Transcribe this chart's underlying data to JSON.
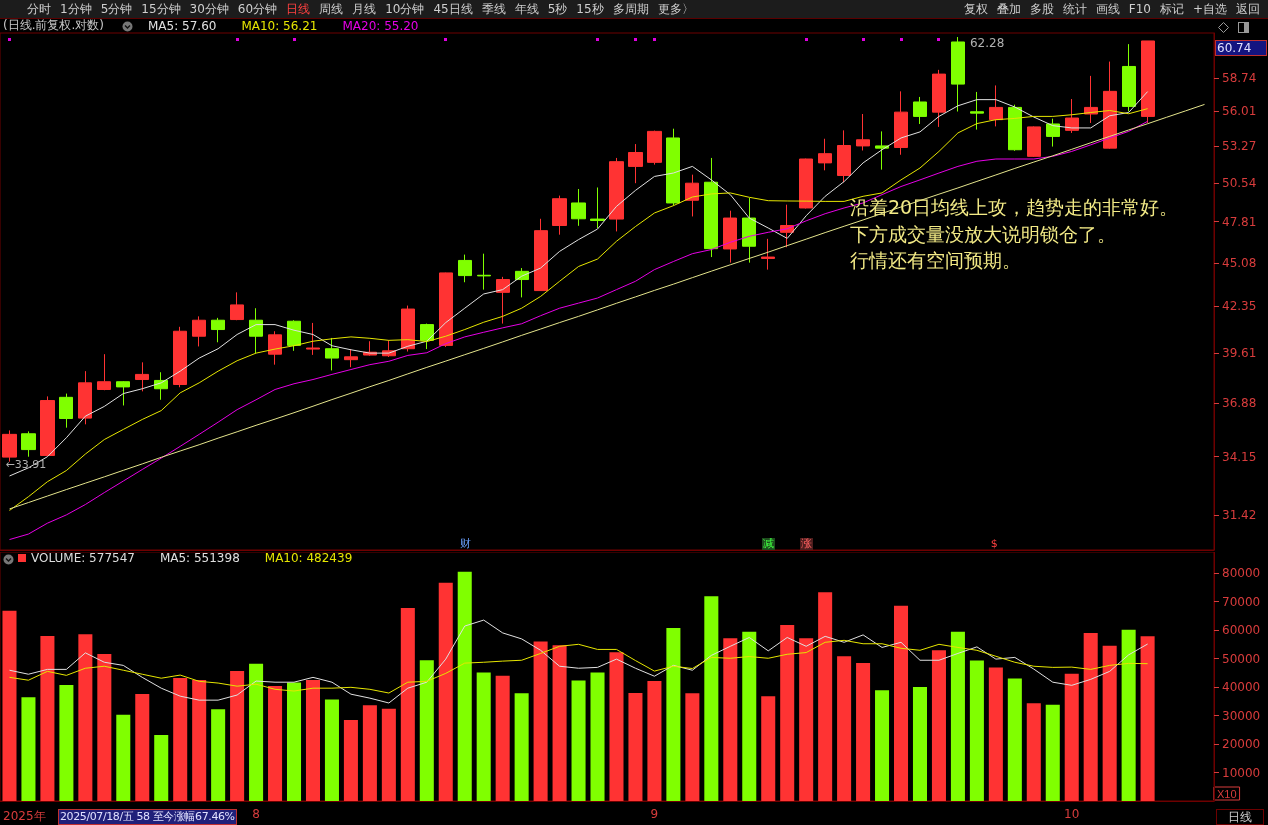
{
  "chart_data": [
    {
      "type": "candlestick",
      "title": "(日线.前复权.对数)",
      "categories": [
        null,
        null,
        null,
        null,
        null,
        null,
        null,
        null,
        null,
        null,
        null,
        null,
        null,
        null,
        null,
        null,
        null,
        null,
        null,
        null,
        null,
        null,
        null,
        null,
        null,
        null,
        null,
        null,
        null,
        null,
        null,
        null,
        null,
        null,
        null,
        null,
        null,
        null,
        null,
        null,
        null,
        null,
        null,
        null,
        null,
        null,
        null,
        null,
        null,
        null,
        null,
        null,
        null,
        null,
        null,
        null,
        null,
        null,
        null,
        null,
        null,
        null,
        null,
        null
      ],
      "ohlc": [
        [
          34.13,
          35.46,
          33.91,
          35.26
        ],
        [
          35.29,
          35.41,
          34.15,
          34.5
        ],
        [
          34.21,
          37.23,
          34.21,
          37.01
        ],
        [
          37.18,
          37.38,
          35.6,
          36.07
        ],
        [
          36.09,
          38.6,
          35.77,
          37.96
        ],
        [
          37.6,
          39.55,
          37.56,
          38.02
        ],
        [
          38.02,
          38.05,
          36.75,
          37.74
        ],
        [
          38.14,
          39.09,
          37.5,
          38.42
        ],
        [
          38.09,
          38.54,
          37.05,
          37.64
        ],
        [
          37.87,
          41.13,
          37.72,
          40.87
        ],
        [
          40.58,
          41.75,
          39.99,
          41.52
        ],
        [
          41.52,
          41.66,
          40.23,
          40.97
        ],
        [
          41.56,
          43.21,
          41.52,
          42.44
        ],
        [
          41.52,
          42.24,
          39.61,
          40.58
        ],
        [
          39.55,
          40.87,
          38.96,
          40.66
        ],
        [
          41.46,
          41.52,
          39.74,
          40.05
        ],
        [
          39.84,
          41.36,
          39.51,
          39.9
        ],
        [
          39.86,
          40.48,
          38.64,
          39.33
        ],
        [
          39.24,
          39.84,
          38.82,
          39.4
        ],
        [
          39.5,
          40.29,
          39.46,
          39.66
        ],
        [
          39.46,
          40.34,
          39.39,
          39.74
        ],
        [
          39.86,
          42.4,
          39.7,
          42.19
        ],
        [
          41.26,
          41.32,
          39.84,
          40.34
        ],
        [
          40.05,
          44.45,
          39.96,
          44.43
        ],
        [
          45.23,
          45.61,
          43.84,
          44.26
        ],
        [
          44.28,
          45.67,
          43.38,
          44.24
        ],
        [
          43.21,
          44.18,
          41.32,
          44.01
        ],
        [
          44.53,
          44.74,
          42.9,
          44.01
        ],
        [
          43.32,
          48.01,
          43.32,
          47.2
        ],
        [
          47.55,
          49.63,
          46.93,
          49.41
        ],
        [
          49.11,
          50.1,
          47.53,
          48.01
        ],
        [
          47.99,
          50.21,
          47.38,
          47.89
        ],
        [
          47.99,
          52.38,
          47.15,
          52.1
        ],
        [
          51.75,
          53.43,
          50.52,
          52.79
        ],
        [
          52.05,
          54.47,
          51.88,
          54.41
        ],
        [
          53.9,
          54.62,
          48.92,
          49.11
        ],
        [
          49.3,
          51.14,
          48.17,
          50.52
        ],
        [
          50.59,
          52.38,
          45.45,
          46.0
        ],
        [
          45.98,
          48.57,
          45.09,
          48.06
        ],
        [
          48.06,
          49.46,
          45.09,
          46.16
        ],
        [
          45.36,
          46.65,
          44.64,
          45.45
        ],
        [
          47.09,
          48.99,
          46.09,
          47.55
        ],
        [
          48.76,
          52.33,
          48.72,
          52.3
        ],
        [
          52.01,
          53.84,
          51.46,
          52.7
        ],
        [
          51.08,
          54.49,
          50.59,
          53.32
        ],
        [
          53.29,
          55.78,
          52.94,
          53.76
        ],
        [
          53.29,
          54.41,
          51.51,
          53.12
        ],
        [
          53.17,
          57.62,
          52.62,
          55.93
        ],
        [
          56.75,
          57.16,
          54.99,
          55.59
        ],
        [
          55.93,
          59.42,
          54.76,
          59.06
        ],
        [
          61.84,
          62.28,
          55.98,
          58.22
        ],
        [
          55.96,
          57.57,
          54.55,
          55.85
        ],
        [
          55.33,
          58.11,
          54.8,
          56.31
        ],
        [
          56.31,
          56.53,
          52.92,
          53.0
        ],
        [
          52.5,
          54.8,
          52.45,
          54.76
        ],
        [
          54.99,
          55.41,
          53.24,
          54.02
        ],
        [
          54.49,
          56.99,
          54.29,
          55.46
        ],
        [
          55.78,
          58.91,
          55.07,
          56.31
        ],
        [
          53.12,
          60.13,
          53.08,
          57.62
        ],
        [
          59.71,
          61.65,
          55.98,
          56.39
        ],
        [
          55.59,
          61.93,
          55.07,
          61.93
        ],
        null,
        null,
        null
      ],
      "colors": [
        "#ff3333",
        "#80ff00",
        "#ff3333",
        "#80ff00",
        "#ff3333",
        "#ff3333",
        "#80ff00",
        "#ff3333",
        "#80ff00",
        "#ff3333",
        "#ff3333",
        "#80ff00",
        "#ff3333",
        "#80ff00",
        "#ff3333",
        "#80ff00",
        "#ff3333",
        "#80ff00",
        "#ff3333",
        "#ff3333",
        "#ff3333",
        "#ff3333",
        "#80ff00",
        "#ff3333",
        "#80ff00",
        "#80ff00",
        "#ff3333",
        "#80ff00",
        "#ff3333",
        "#ff3333",
        "#80ff00",
        "#80ff00",
        "#ff3333",
        "#ff3333",
        "#ff3333",
        "#80ff00",
        "#ff3333",
        "#80ff00",
        "#ff3333",
        "#80ff00",
        "#ff3333",
        "#ff3333",
        "#ff3333",
        "#ff3333",
        "#ff3333",
        "#ff3333",
        "#80ff00",
        "#ff3333",
        "#80ff00",
        "#ff3333",
        "#80ff00",
        "#80ff00",
        "#ff3333",
        "#80ff00",
        "#ff3333",
        "#80ff00",
        "#ff3333",
        "#ff3333",
        "#ff3333",
        "#80ff00",
        "#ff3333",
        null,
        null,
        null
      ],
      "series": [
        {
          "type": "line",
          "name": "MA5: 57.60",
          "color": "#e0e0e0",
          "values": [
            33.22,
            33.61,
            34.15,
            35.09,
            36.19,
            36.7,
            37.38,
            37.64,
            37.96,
            38.6,
            39.33,
            39.86,
            40.68,
            41.26,
            41.26,
            40.93,
            40.68,
            40.03,
            39.8,
            39.61,
            39.61,
            40.0,
            40.29,
            41.38,
            42.24,
            43.11,
            43.38,
            44.22,
            44.74,
            45.82,
            46.6,
            47.31,
            48.87,
            50.0,
            51.01,
            51.26,
            51.75,
            50.76,
            49.7,
            48.06,
            47.38,
            46.68,
            48.22,
            49.58,
            50.64,
            52.01,
            53.0,
            53.9,
            54.37,
            55.59,
            56.44,
            56.94,
            56.94,
            56.34,
            55.54,
            54.86,
            54.68,
            54.68,
            55.64,
            55.9,
            57.6,
            null,
            null,
            null
          ]
        },
        {
          "type": "line",
          "name": "MA10: 56.21",
          "color": "#e6e600",
          "values": [
            31.62,
            32.25,
            32.95,
            33.48,
            34.28,
            35.0,
            35.51,
            36.02,
            36.48,
            37.42,
            37.96,
            38.6,
            39.18,
            39.61,
            39.84,
            40.03,
            40.29,
            40.43,
            40.54,
            40.46,
            40.34,
            40.38,
            40.27,
            40.58,
            40.97,
            41.4,
            41.75,
            42.24,
            42.96,
            43.9,
            44.84,
            45.32,
            46.49,
            47.48,
            48.41,
            48.92,
            49.53,
            49.75,
            49.82,
            49.51,
            49.27,
            49.25,
            49.24,
            49.22,
            49.22,
            49.58,
            49.82,
            50.76,
            51.63,
            52.87,
            54.29,
            55.02,
            55.33,
            55.43,
            55.59,
            55.59,
            55.72,
            55.9,
            56.06,
            55.8,
            56.21,
            null,
            null,
            null
          ]
        },
        {
          "type": "line",
          "name": "MA20: 55.20",
          "color": "#e600e6",
          "values": [
            30.33,
            30.57,
            31.05,
            31.42,
            31.89,
            32.44,
            32.98,
            33.53,
            34.08,
            34.66,
            35.26,
            35.88,
            36.53,
            37.05,
            37.6,
            37.91,
            38.14,
            38.42,
            38.69,
            38.96,
            39.15,
            39.48,
            39.63,
            40.15,
            40.54,
            40.81,
            41.07,
            41.31,
            41.79,
            42.24,
            42.55,
            42.86,
            43.38,
            43.9,
            44.64,
            45.16,
            45.67,
            45.94,
            46.42,
            46.82,
            47.09,
            47.33,
            47.87,
            48.36,
            48.76,
            49.11,
            49.7,
            50.28,
            50.76,
            51.26,
            51.75,
            52.13,
            52.3,
            52.3,
            52.3,
            52.5,
            52.87,
            53.37,
            53.9,
            54.41,
            55.2,
            null,
            null,
            null
          ]
        },
        {
          "type": "line",
          "color": "#e4e48c",
          "values": [
            31.69,
            31.98,
            32.28,
            32.58,
            32.88,
            33.18,
            33.49,
            33.8,
            34.12,
            34.43,
            34.74,
            35.07,
            35.39,
            35.72,
            36.04,
            36.37,
            36.71,
            37.06,
            37.4,
            37.75,
            38.09,
            38.45,
            38.81,
            39.16,
            39.52,
            39.88,
            40.25,
            40.63,
            41.0,
            41.38,
            41.75,
            42.14,
            42.54,
            42.93,
            43.33,
            43.72,
            44.13,
            44.54,
            44.95,
            45.36,
            45.77,
            46.2,
            46.63,
            47.07,
            47.5,
            47.93,
            48.38,
            48.83,
            49.28,
            49.73,
            50.18,
            50.65,
            51.12,
            51.6,
            52.07,
            52.54,
            53.03,
            53.53,
            54.02,
            54.52,
            55.01,
            55.52,
            56.03,
            56.55
          ]
        }
      ],
      "ylim": [
        29.88,
        62.64
      ],
      "yticks": [
        31.42,
        34.15,
        36.88,
        39.61,
        42.35,
        45.08,
        47.81,
        50.54,
        53.27,
        56.01,
        58.74
      ],
      "log": true,
      "grid": false,
      "legend": "top left",
      "tick_labels": "y",
      "marker": "none",
      "annotations": [
        "分时",
        "1分钟",
        "5分钟",
        "15分钟",
        "30分钟",
        "60分钟",
        "日线",
        "周线",
        "月线",
        "10分钟",
        "45日线",
        "季线",
        "年线",
        "5秒",
        "15秒",
        "多周期",
        "更多〉",
        "复权",
        "叠加",
        "多股",
        "统计",
        "画线",
        "F10",
        "标记",
        "+自选",
        "返回",
        "沿着20日均线上攻，趋势走的非常好。",
        "下方成交量没放大说明锁仓了。",
        "行情还有空间预期。",
        "财",
        "减",
        "涨",
        "$",
        "←33.91",
        "62.28",
        "60.74"
      ]
    },
    {
      "type": "bar",
      "categories": [
        null,
        null,
        null,
        null,
        null,
        null,
        null,
        null,
        null,
        null,
        null,
        null,
        null,
        "8",
        null,
        null,
        null,
        null,
        null,
        null,
        null,
        null,
        null,
        null,
        null,
        null,
        null,
        null,
        null,
        null,
        null,
        null,
        null,
        null,
        "9",
        null,
        null,
        null,
        null,
        null,
        null,
        null,
        null,
        null,
        null,
        null,
        null,
        null,
        null,
        null,
        null,
        null,
        null,
        null,
        null,
        null,
        "10",
        null,
        null,
        null,
        null,
        null,
        null,
        null
      ],
      "series": [
        {
          "name": "VOLUME: 577547",
          "values": [
            66800,
            36400,
            57900,
            40700,
            58500,
            51600,
            30300,
            37600,
            23200,
            43200,
            42500,
            32200,
            45600,
            48200,
            40400,
            41600,
            42500,
            35600,
            28400,
            33600,
            32400,
            67700,
            49400,
            76600,
            80500,
            45100,
            44000,
            37800,
            56000,
            54700,
            42300,
            45100,
            52200,
            37900,
            42100,
            60700,
            37800,
            71900,
            57100,
            59400,
            36800,
            61800,
            57100,
            73300,
            50800,
            48400,
            38900,
            68500,
            40000,
            52900,
            59400,
            49300,
            46900,
            43000,
            34300,
            33800,
            44700,
            59000,
            54500,
            60100,
            57800,
            null,
            null,
            null
          ],
          "colors": [
            "#ff3333",
            "#80ff00",
            "#ff3333",
            "#80ff00",
            "#ff3333",
            "#ff3333",
            "#80ff00",
            "#ff3333",
            "#80ff00",
            "#ff3333",
            "#ff3333",
            "#80ff00",
            "#ff3333",
            "#80ff00",
            "#ff3333",
            "#80ff00",
            "#ff3333",
            "#80ff00",
            "#ff3333",
            "#ff3333",
            "#ff3333",
            "#ff3333",
            "#80ff00",
            "#ff3333",
            "#80ff00",
            "#80ff00",
            "#ff3333",
            "#80ff00",
            "#ff3333",
            "#ff3333",
            "#80ff00",
            "#80ff00",
            "#ff3333",
            "#ff3333",
            "#ff3333",
            "#80ff00",
            "#ff3333",
            "#80ff00",
            "#ff3333",
            "#80ff00",
            "#ff3333",
            "#ff3333",
            "#ff3333",
            "#ff3333",
            "#ff3333",
            "#ff3333",
            "#80ff00",
            "#ff3333",
            "#80ff00",
            "#ff3333",
            "#80ff00",
            "#80ff00",
            "#ff3333",
            "#80ff00",
            "#ff3333",
            "#80ff00",
            "#ff3333",
            "#ff3333",
            "#ff3333",
            "#80ff00",
            "#ff3333",
            null,
            null,
            null
          ]
        },
        {
          "type": "line",
          "name": "MA5: 551398",
          "color": "#e0e0e0",
          "values": [
            45900,
            44500,
            46200,
            46200,
            52000,
            48700,
            47600,
            43400,
            39600,
            36800,
            35400,
            35400,
            37200,
            42100,
            41700,
            41700,
            43400,
            41700,
            37500,
            36100,
            34400,
            39600,
            41700,
            49800,
            61400,
            63500,
            59000,
            56900,
            52900,
            47300,
            46600,
            46900,
            49800,
            46600,
            43800,
            47600,
            45900,
            51100,
            54300,
            57400,
            52700,
            57400,
            54300,
            57800,
            55700,
            58300,
            53900,
            55700,
            49400,
            49400,
            51800,
            54100,
            49800,
            50400,
            46300,
            41700,
            40600,
            42700,
            45500,
            51300,
            55100,
            null,
            null,
            null
          ]
        },
        {
          "type": "line",
          "name": "MA10: 482439",
          "color": "#e6e600",
          "values": [
            43400,
            42400,
            45500,
            44100,
            46600,
            47300,
            45900,
            44500,
            43100,
            44200,
            42000,
            41400,
            40300,
            41000,
            39200,
            38600,
            39600,
            39600,
            39900,
            39200,
            37900,
            41700,
            42000,
            44800,
            48400,
            48700,
            49100,
            49400,
            51800,
            54300,
            55000,
            53200,
            53200,
            49300,
            45600,
            47300,
            46500,
            50400,
            50100,
            50700,
            50100,
            51500,
            52100,
            55700,
            56400,
            55200,
            55200,
            53600,
            52900,
            55000,
            53900,
            52900,
            50800,
            48700,
            47300,
            46900,
            47000,
            46200,
            47600,
            48300,
            48200,
            null,
            null,
            null
          ]
        }
      ],
      "ylim": [
        0,
        87400
      ],
      "yticks": [
        10000,
        20000,
        30000,
        40000,
        50000,
        60000,
        70000,
        80000
      ],
      "ylabel": "X10",
      "grid": false,
      "legend": "top left",
      "marker": "none",
      "annotations": [
        "2025年",
        "2025/07/18/五 58 至今涨幅67.46%",
        "日线"
      ]
    }
  ]
}
